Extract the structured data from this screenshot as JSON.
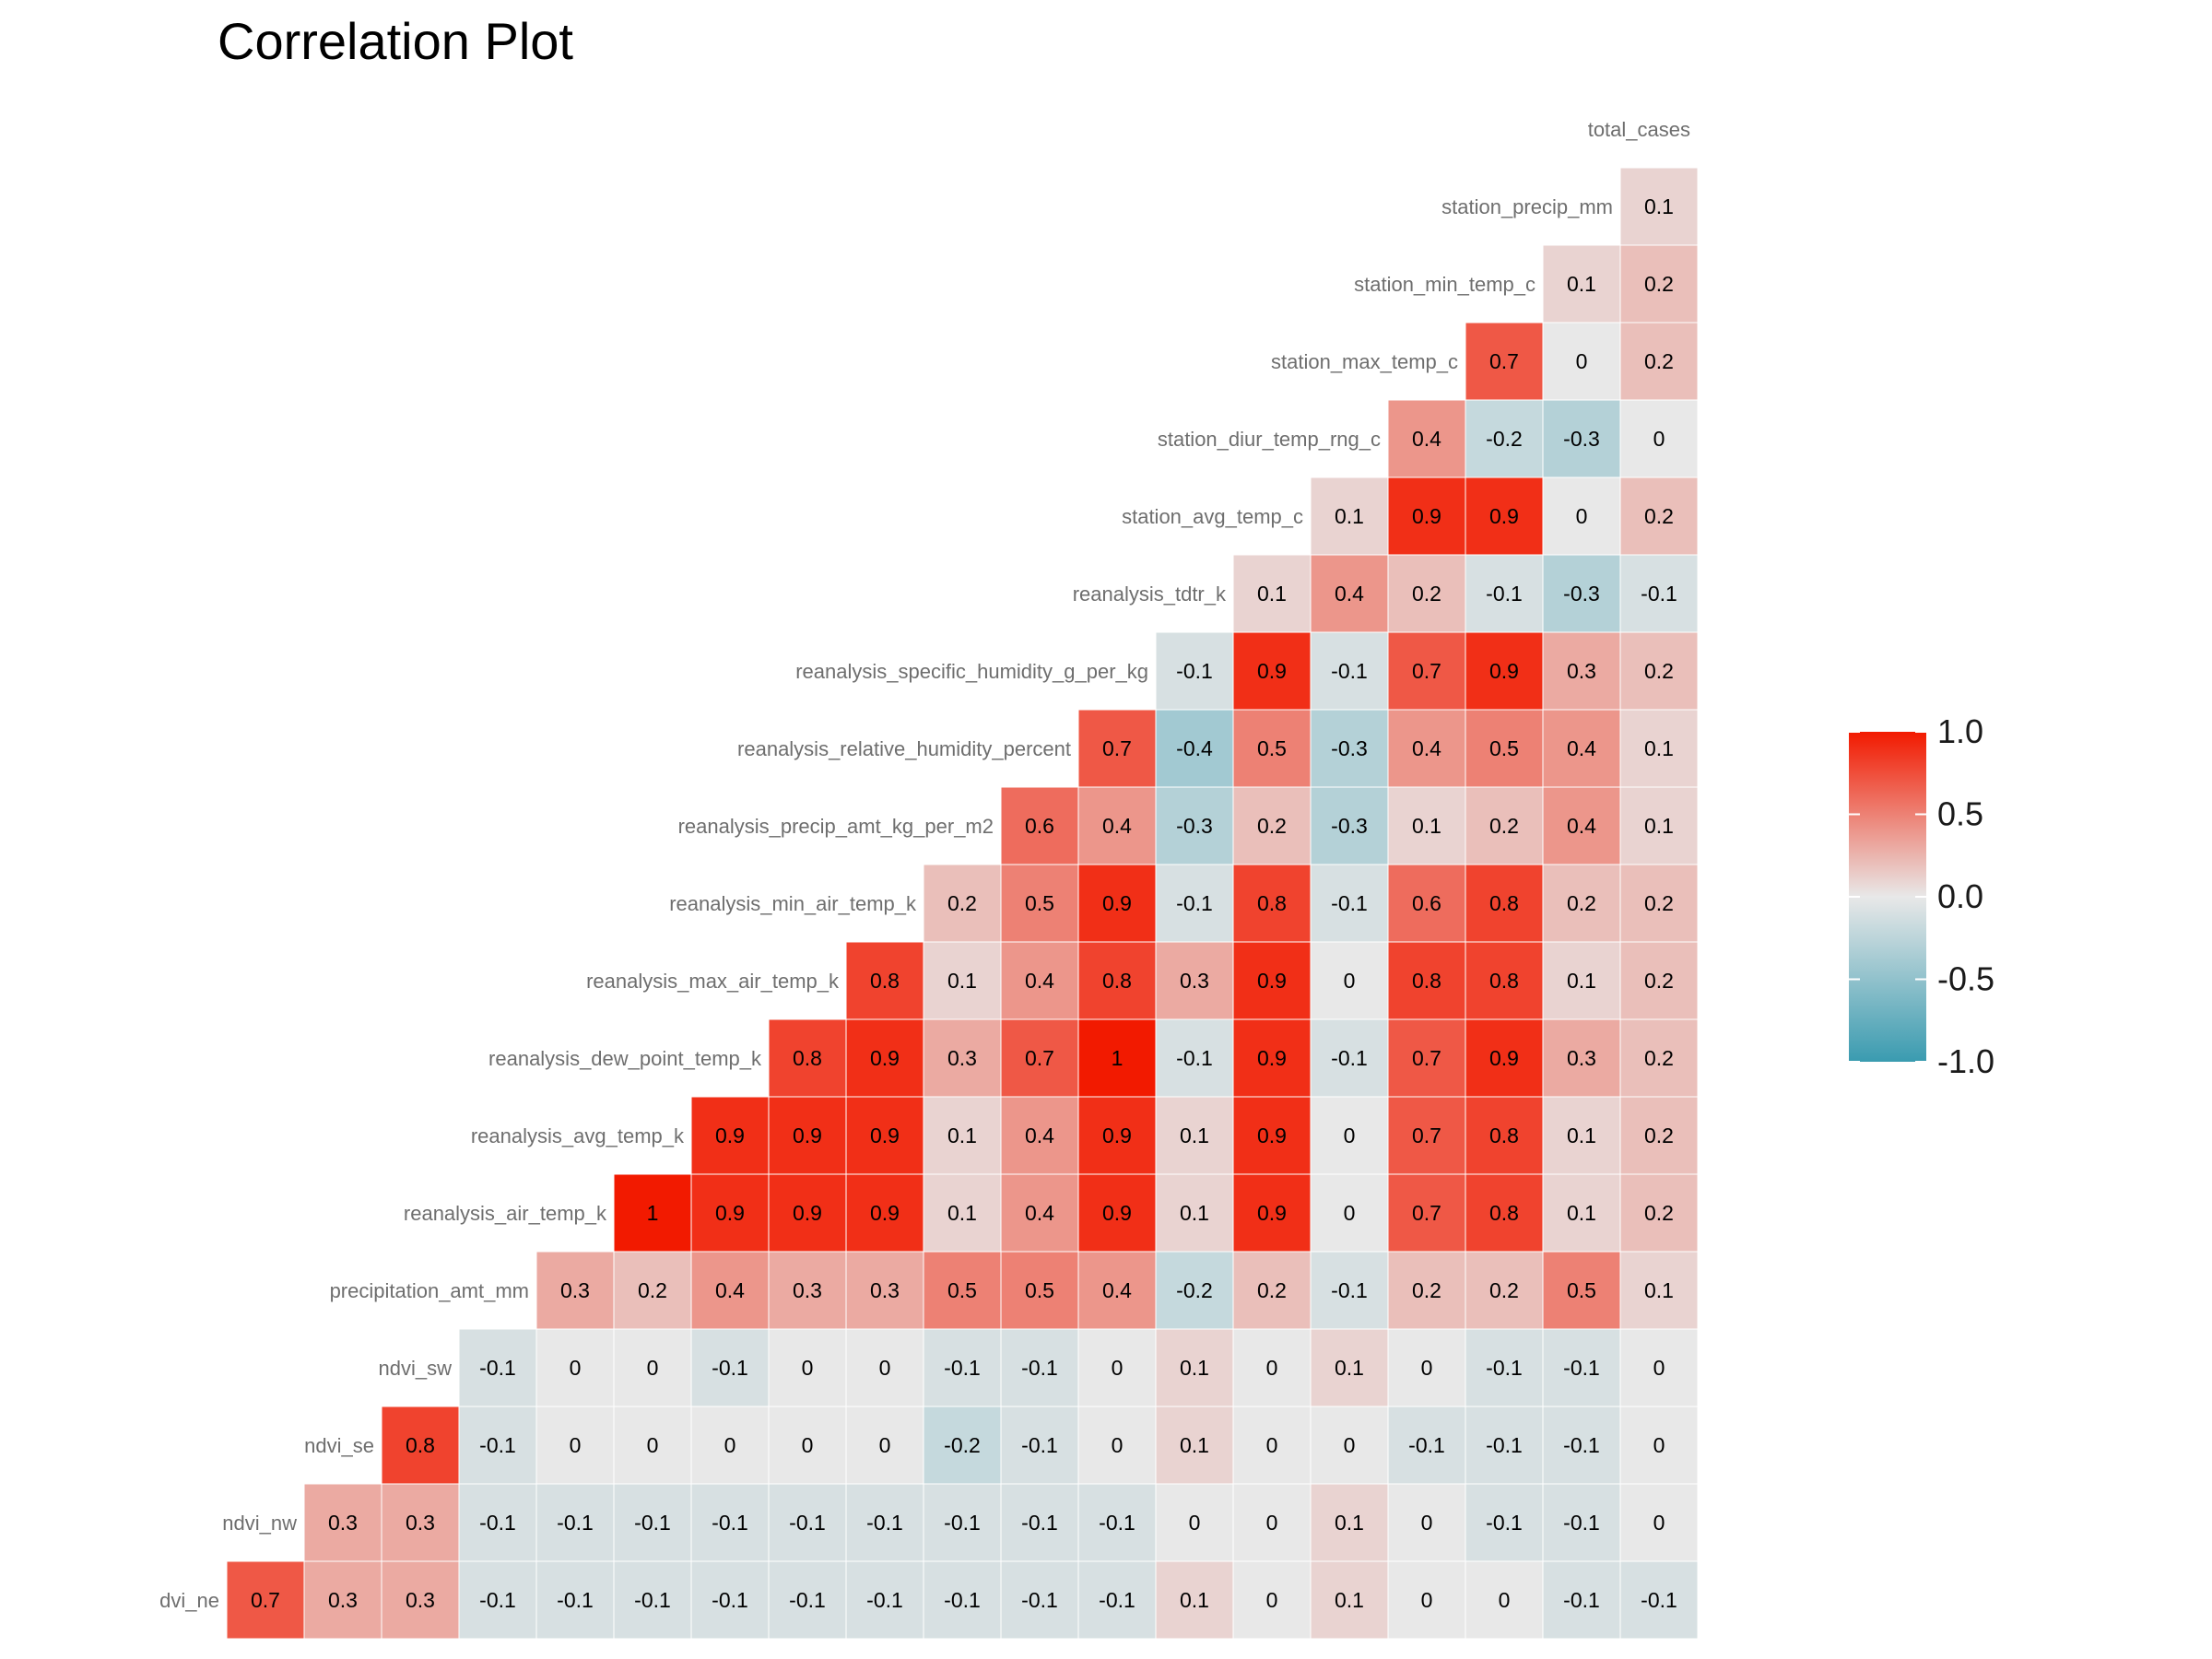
{
  "title": "Correlation Plot",
  "colors": {
    "low": "#3A9BB0",
    "mid": "#E8E8E8",
    "high": "#F21A00"
  },
  "chart_data": {
    "type": "heatmap",
    "title": "Correlation Plot",
    "variables": [
      "ndvi_ne",
      "ndvi_nw",
      "ndvi_se",
      "ndvi_sw",
      "precipitation_amt_mm",
      "reanalysis_air_temp_k",
      "reanalysis_avg_temp_k",
      "reanalysis_dew_point_temp_k",
      "reanalysis_max_air_temp_k",
      "reanalysis_min_air_temp_k",
      "reanalysis_precip_amt_kg_per_m2",
      "reanalysis_relative_humidity_percent",
      "reanalysis_specific_humidity_g_per_kg",
      "reanalysis_tdtr_k",
      "station_avg_temp_c",
      "station_diur_temp_rng_c",
      "station_max_temp_c",
      "station_min_temp_c",
      "station_precip_mm",
      "total_cases"
    ],
    "row_labels": [
      "dvi_ne",
      "ndvi_nw",
      "ndvi_se",
      "ndvi_sw",
      "precipitation_amt_mm",
      "reanalysis_air_temp_k",
      "reanalysis_avg_temp_k",
      "reanalysis_dew_point_temp_k",
      "reanalysis_max_air_temp_k",
      "reanalysis_min_air_temp_k",
      "reanalysis_precip_amt_kg_per_m2",
      "reanalysis_relative_humidity_percent",
      "reanalysis_specific_humidity_g_per_kg",
      "reanalysis_tdtr_k",
      "station_avg_temp_c",
      "station_diur_temp_rng_c",
      "station_max_temp_c",
      "station_min_temp_c",
      "station_precip_mm",
      "total_cases"
    ],
    "rows": [
      [
        0.7,
        0.3,
        0.3,
        -0.1,
        -0.1,
        -0.1,
        -0.1,
        -0.1,
        -0.1,
        -0.1,
        -0.1,
        -0.1,
        0.1,
        0,
        0.1,
        0,
        0,
        -0.1,
        -0.1
      ],
      [
        0.3,
        0.3,
        -0.1,
        -0.1,
        -0.1,
        -0.1,
        -0.1,
        -0.1,
        -0.1,
        -0.1,
        -0.1,
        0,
        0,
        0.1,
        0,
        -0.1,
        -0.1,
        0
      ],
      [
        0.8,
        -0.1,
        0,
        0,
        0,
        0,
        0,
        -0.2,
        -0.1,
        0,
        0.1,
        0,
        0,
        -0.1,
        -0.1,
        -0.1,
        0
      ],
      [
        -0.1,
        0,
        0,
        -0.1,
        0,
        0,
        -0.1,
        -0.1,
        0,
        0.1,
        0,
        0.1,
        0,
        -0.1,
        -0.1,
        0
      ],
      [
        0.3,
        0.2,
        0.4,
        0.3,
        0.3,
        0.5,
        0.5,
        0.4,
        -0.2,
        0.2,
        -0.1,
        0.2,
        0.2,
        0.5,
        0.1
      ],
      [
        1,
        0.9,
        0.9,
        0.9,
        0.1,
        0.4,
        0.9,
        0.1,
        0.9,
        0,
        0.7,
        0.8,
        0.1,
        0.2
      ],
      [
        0.9,
        0.9,
        0.9,
        0.1,
        0.4,
        0.9,
        0.1,
        0.9,
        0,
        0.7,
        0.8,
        0.1,
        0.2
      ],
      [
        0.8,
        0.9,
        0.3,
        0.7,
        1,
        -0.1,
        0.9,
        -0.1,
        0.7,
        0.9,
        0.3,
        0.2
      ],
      [
        0.8,
        0.1,
        0.4,
        0.8,
        0.3,
        0.9,
        0,
        0.8,
        0.8,
        0.1,
        0.2
      ],
      [
        0.2,
        0.5,
        0.9,
        -0.1,
        0.8,
        -0.1,
        0.6,
        0.8,
        0.2,
        0.2
      ],
      [
        0.6,
        0.4,
        -0.3,
        0.2,
        -0.3,
        0.1,
        0.2,
        0.4,
        0.1
      ],
      [
        0.7,
        -0.4,
        0.5,
        -0.3,
        0.4,
        0.5,
        0.4,
        0.1
      ],
      [
        -0.1,
        0.9,
        -0.1,
        0.7,
        0.9,
        0.3,
        0.2
      ],
      [
        0.1,
        0.4,
        0.2,
        -0.1,
        -0.3,
        -0.1
      ],
      [
        0.1,
        0.9,
        0.9,
        0,
        0.2
      ],
      [
        0.4,
        -0.2,
        -0.3,
        0
      ],
      [
        0.7,
        0,
        0.2
      ],
      [
        0.1,
        0.2
      ],
      [
        0.1
      ],
      []
    ],
    "legend": {
      "position": "right",
      "ticks": [
        "1.0",
        "0.5",
        "0.0",
        "-0.5",
        "-1.0"
      ],
      "tick_values": [
        1,
        0.5,
        0,
        -0.5,
        -1
      ],
      "range": [
        -1,
        1
      ]
    },
    "grid": false
  }
}
